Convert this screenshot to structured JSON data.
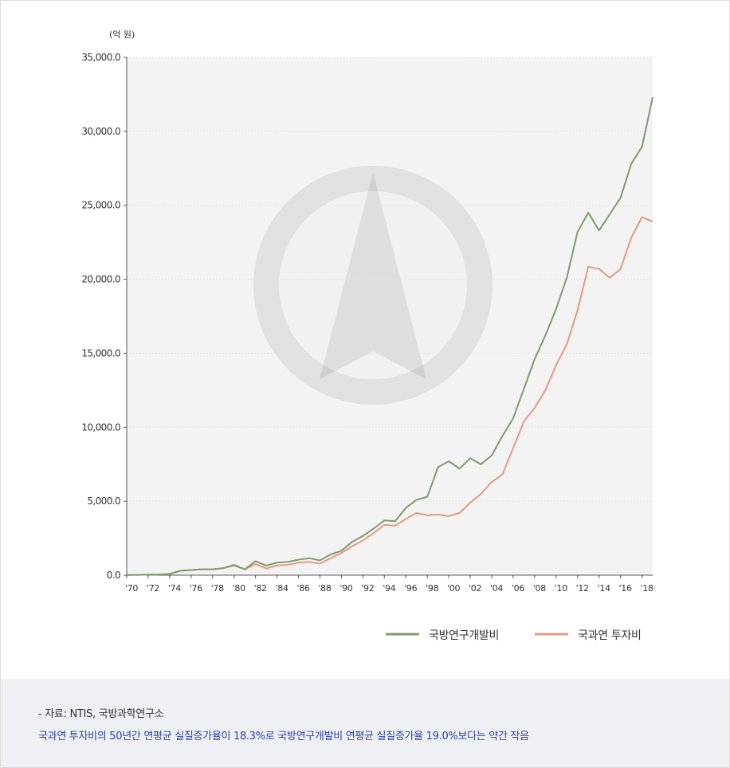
{
  "chart_data": {
    "type": "line",
    "unit_label": "(억 원)",
    "ylim": [
      0,
      35000
    ],
    "y_ticks": [
      "0.0",
      "5,000.0",
      "10,000.0",
      "15,000.0",
      "20,000.0",
      "25,000.0",
      "30,000.0",
      "35,000.0"
    ],
    "y_tick_values": [
      0,
      5000,
      10000,
      15000,
      20000,
      25000,
      30000,
      35000
    ],
    "x_tick_labels": [
      "'70",
      "'72",
      "'74",
      "'76",
      "'78",
      "'80",
      "'82",
      "'84",
      "'86",
      "'88",
      "'90",
      "'92",
      "'94",
      "'96",
      "'98",
      "'00",
      "'02",
      "'04",
      "'06",
      "'08",
      "'10",
      "'12",
      "'14",
      "'16",
      "'18"
    ],
    "x": [
      1970,
      1971,
      1972,
      1973,
      1974,
      1975,
      1976,
      1977,
      1978,
      1979,
      1980,
      1981,
      1982,
      1983,
      1984,
      1985,
      1986,
      1987,
      1988,
      1989,
      1990,
      1991,
      1992,
      1993,
      1994,
      1995,
      1996,
      1997,
      1998,
      1999,
      2000,
      2001,
      2002,
      2003,
      2004,
      2005,
      2006,
      2007,
      2008,
      2009,
      2010,
      2011,
      2012,
      2013,
      2014,
      2015,
      2016,
      2017,
      2018,
      2019
    ],
    "grid": true,
    "legend_position": "bottom-right",
    "series": [
      {
        "name": "국방연구개발비",
        "color": "#7d9d69",
        "values": [
          10,
          20,
          40,
          50,
          80,
          300,
          350,
          400,
          400,
          480,
          700,
          400,
          950,
          650,
          850,
          900,
          1050,
          1150,
          1000,
          1400,
          1650,
          2250,
          2650,
          3150,
          3700,
          3650,
          4550,
          5100,
          5300,
          7300,
          7700,
          7200,
          7900,
          7500,
          8100,
          9400,
          10600,
          12600,
          14600,
          16200,
          18000,
          20100,
          23200,
          24500,
          23300,
          24400,
          25500,
          27800,
          28950,
          32300
        ]
      },
      {
        "name": "국과연 투자비",
        "color": "#e39a80",
        "values": [
          10,
          20,
          40,
          50,
          80,
          300,
          350,
          400,
          400,
          480,
          650,
          400,
          750,
          450,
          650,
          700,
          850,
          900,
          780,
          1150,
          1500,
          1950,
          2350,
          2850,
          3400,
          3350,
          3800,
          4200,
          4050,
          4100,
          4000,
          4200,
          4900,
          5500,
          6300,
          6800,
          8600,
          10400,
          11300,
          12500,
          14200,
          15600,
          17900,
          20850,
          20700,
          20100,
          20700,
          22800,
          24200,
          23900
        ]
      }
    ]
  },
  "footer": {
    "source": "- 자료: NTIS, 국방과학연구소",
    "summary": "국과연 투자비의 50년간 연평균 실질증가율이 18.3%로 국방연구개발비 연평균 실질증가율 19.0%보다는 약간 작음"
  }
}
